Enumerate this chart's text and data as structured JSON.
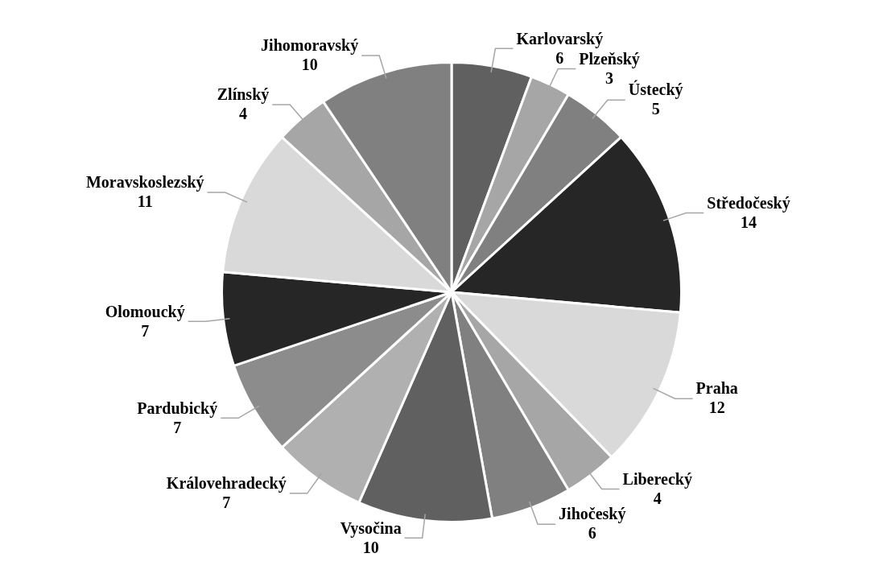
{
  "chart_data": {
    "type": "pie",
    "categories": [
      "Karlovarský",
      "Plzeňský",
      "Ústecký",
      "Středočeský",
      "Praha",
      "Liberecký",
      "Jihočeský",
      "Vysočina",
      "Královehradecký",
      "Pardubický",
      "Olomoucký",
      "Moravskoslezský",
      "Zlínský",
      "Jihomoravský"
    ],
    "values": [
      6,
      3,
      5,
      14,
      12,
      4,
      6,
      10,
      7,
      7,
      7,
      11,
      4,
      10
    ],
    "colors": [
      "#606060",
      "#a6a6a6",
      "#808080",
      "#262626",
      "#d9d9d9",
      "#a6a6a6",
      "#808080",
      "#606060",
      "#b0b0b0",
      "#8c8c8c",
      "#262626",
      "#d9d9d9",
      "#a6a6a6",
      "#808080"
    ],
    "data_labels": true,
    "legend": false
  }
}
